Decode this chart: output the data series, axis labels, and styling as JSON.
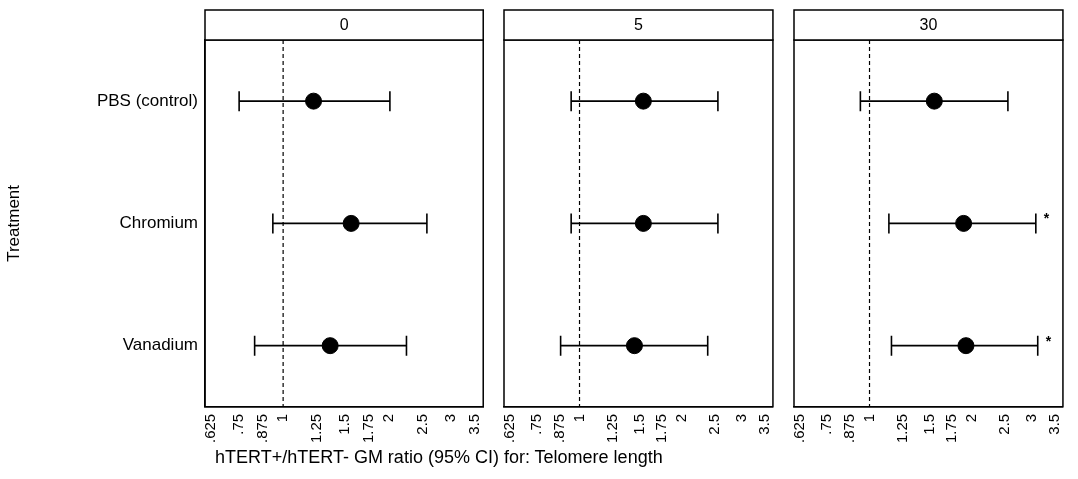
{
  "chart_data": [
    {
      "type": "scatter",
      "orientation": "horizontal",
      "title": "0",
      "ylabel": "Treatment",
      "xlabel": "hTERT+/hTERT- GM ratio (95% CI) for: Telomere length",
      "categories": [
        "PBS (control)",
        "Chromium",
        "Vanadium"
      ],
      "values": [
        1.22,
        1.56,
        1.36
      ],
      "errors": [
        [
          0.75,
          2.01
        ],
        [
          0.935,
          2.56
        ],
        [
          0.83,
          2.24
        ]
      ],
      "color": "#000000",
      "marker": "circle",
      "log": "x",
      "grid": false,
      "xlim": [
        0.6,
        3.7
      ],
      "xticks": [
        {
          "value": 0.625,
          "label": ".625"
        },
        {
          "value": 0.75,
          "label": ".75"
        },
        {
          "value": 0.875,
          "label": ".875"
        },
        1,
        1.25,
        1.5,
        1.75,
        2,
        2.5,
        3,
        3.5
      ],
      "ref_lines": [
        {
          "axis": "x",
          "value": 1,
          "line_style": "dashed"
        }
      ]
    },
    {
      "type": "scatter",
      "orientation": "horizontal",
      "title": "5",
      "tick_labels": "x",
      "categories": [
        "PBS (control)",
        "Chromium",
        "Vanadium"
      ],
      "values": [
        1.54,
        1.54,
        1.45
      ],
      "errors": [
        [
          0.945,
          2.55
        ],
        [
          0.945,
          2.55
        ],
        [
          0.88,
          2.38
        ]
      ],
      "color": "#000000",
      "marker": "circle",
      "log": "x",
      "grid": false,
      "xlim": [
        0.6,
        3.7
      ],
      "xticks": [
        {
          "value": 0.625,
          "label": ".625"
        },
        {
          "value": 0.75,
          "label": ".75"
        },
        {
          "value": 0.875,
          "label": ".875"
        },
        1,
        1.25,
        1.5,
        1.75,
        2,
        2.5,
        3,
        3.5
      ],
      "ref_lines": [
        {
          "axis": "x",
          "value": 1,
          "line_style": "dashed"
        }
      ]
    },
    {
      "type": "scatter",
      "orientation": "horizontal",
      "title": "30",
      "tick_labels": "x",
      "categories": [
        "PBS (control)",
        "Chromium",
        "Vanadium"
      ],
      "values": [
        1.55,
        1.89,
        1.92
      ],
      "errors": [
        [
          0.94,
          2.55
        ],
        [
          1.14,
          3.08
        ],
        [
          1.16,
          3.12
        ]
      ],
      "color": "#000000",
      "marker": "circle",
      "log": "x",
      "grid": false,
      "xlim": [
        0.6,
        3.7
      ],
      "xticks": [
        {
          "value": 0.625,
          "label": ".625"
        },
        {
          "value": 0.75,
          "label": ".75"
        },
        {
          "value": 0.875,
          "label": ".875"
        },
        1,
        1.25,
        1.5,
        1.75,
        2,
        2.5,
        3,
        3.5
      ],
      "ref_lines": [
        {
          "axis": "x",
          "value": 1,
          "line_style": "dashed"
        }
      ],
      "annotations": [
        {
          "text": "*",
          "x": 3.08,
          "y": "Chromium"
        },
        {
          "text": "*",
          "x": 3.12,
          "y": "Vanadium"
        }
      ]
    }
  ]
}
